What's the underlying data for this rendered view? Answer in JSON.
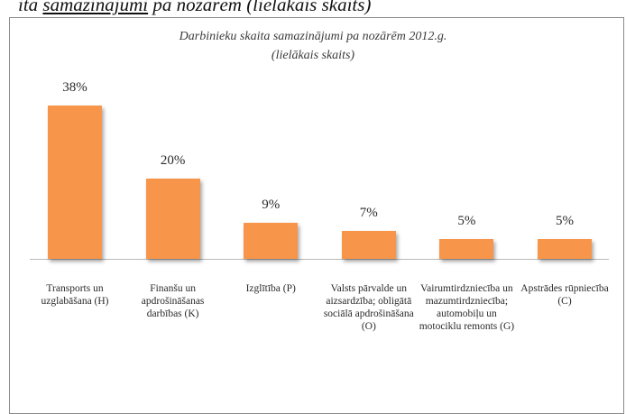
{
  "page_heading": {
    "prefix": "ita ",
    "underlined": "samazinājumi",
    "suffix": " pa nozārēm (lielākais skaits)"
  },
  "colors": {
    "bar": "#f7964a",
    "frame": "#8a8a8a"
  },
  "chart_data": {
    "type": "bar",
    "title": "Darbinieku skaita samazinājumi pa nozārēm 2012.g.",
    "subtitle": "(lielākais skaits)",
    "categories": [
      "Transports un uzglabāšana (H)",
      "Finanšu un apdrošināšanas darbības (K)",
      "Izglītība (P)",
      "Valsts pārvalde un aizsardzība; obligātā sociālā apdrošināšana (O)",
      "Vairumtirdzniecība un mazumtirdzniecība; automobiļu un motociklu remonts (G)",
      "Apstrādes rūpniecība (C)"
    ],
    "values": [
      38,
      20,
      9,
      7,
      5,
      5
    ],
    "value_labels": [
      "38%",
      "20%",
      "9%",
      "7%",
      "5%",
      "5%"
    ],
    "unit": "%",
    "ylim": [
      0,
      40
    ],
    "grid": false,
    "legend": "none"
  }
}
